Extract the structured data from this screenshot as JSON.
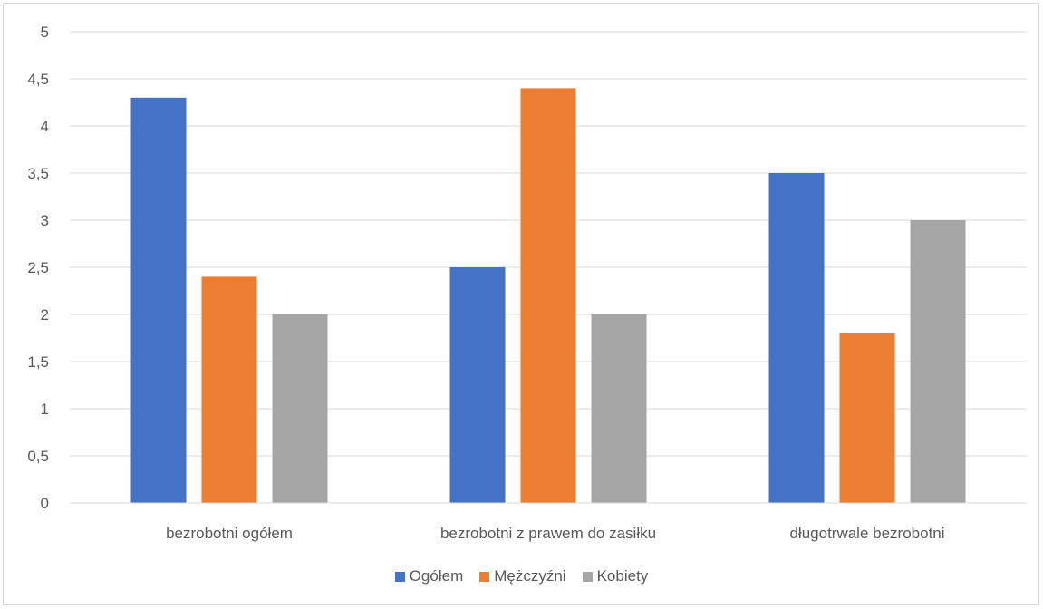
{
  "chart_data": {
    "type": "bar",
    "categories": [
      "bezrobotni ogółem",
      "bezrobotni z prawem do zasiłku",
      "długotrwale bezrobotni"
    ],
    "series": [
      {
        "name": "Ogółem",
        "color": "#4472C4",
        "values": [
          4.3,
          2.5,
          3.5
        ]
      },
      {
        "name": "Mężczyźni",
        "color": "#ED7D31",
        "values": [
          2.4,
          4.4,
          1.8
        ]
      },
      {
        "name": "Kobiety",
        "color": "#A5A5A5",
        "values": [
          2.0,
          2.0,
          3.0
        ]
      }
    ],
    "yticks": [
      "0",
      "0,5",
      "1",
      "1,5",
      "2",
      "2,5",
      "3",
      "3,5",
      "4",
      "4,5",
      "5"
    ],
    "ylim": [
      0,
      5
    ],
    "grid": true,
    "legend_position": "bottom"
  }
}
